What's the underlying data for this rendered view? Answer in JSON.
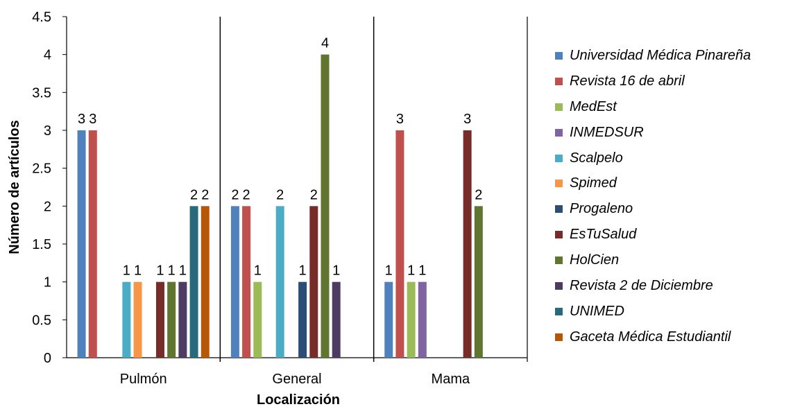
{
  "chart_data": {
    "type": "bar",
    "title": "",
    "xlabel": "Localización",
    "ylabel": "Número de artículos",
    "ylim": [
      0,
      4.5
    ],
    "yticks": [
      "0",
      "0.5",
      "1",
      "1.5",
      "2",
      "2.5",
      "3",
      "3.5",
      "4",
      "4.5"
    ],
    "grid": false,
    "legend_position": "right",
    "categories": [
      "Pulmón",
      "General",
      "Mama"
    ],
    "series": [
      {
        "name": "Universidad Médica Pinareña",
        "color": "#4F81BD",
        "values": [
          3,
          2,
          1
        ]
      },
      {
        "name": "Revista 16 de abril",
        "color": "#C0504D",
        "values": [
          3,
          2,
          3
        ]
      },
      {
        "name": "MedEst",
        "color": "#9BBB59",
        "values": [
          0,
          1,
          1
        ]
      },
      {
        "name": "INMEDSUR",
        "color": "#8064A2",
        "values": [
          0,
          0,
          1
        ]
      },
      {
        "name": "Scalpelo",
        "color": "#4BACC6",
        "values": [
          1,
          2,
          0
        ]
      },
      {
        "name": "Spimed",
        "color": "#F79646",
        "values": [
          1,
          0,
          0
        ]
      },
      {
        "name": "Progaleno",
        "color": "#2C4D75",
        "values": [
          0,
          1,
          0
        ]
      },
      {
        "name": "EsTuSalud",
        "color": "#772C2A",
        "values": [
          1,
          2,
          3
        ]
      },
      {
        "name": "HolCien",
        "color": "#5F7530",
        "values": [
          1,
          4,
          2
        ]
      },
      {
        "name": "Revista 2 de Diciembre",
        "color": "#4D3B62",
        "values": [
          1,
          1,
          0
        ]
      },
      {
        "name": "UNIMED",
        "color": "#276A7C",
        "values": [
          2,
          0,
          0
        ]
      },
      {
        "name": "Gaceta Médica Estudiantil",
        "color": "#B65708",
        "values": [
          2,
          0,
          0
        ]
      }
    ]
  }
}
